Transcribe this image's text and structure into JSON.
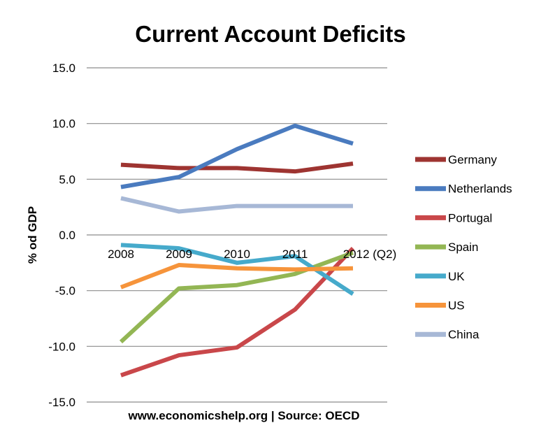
{
  "chart_data": {
    "type": "line",
    "title": "Current Account Deficits",
    "xlabel": "www.economicshelp.org | Source: OECD",
    "ylabel": "% od GDP",
    "categories": [
      "2008",
      "2009",
      "2010",
      "2011",
      "2012 (Q2)"
    ],
    "ylim": [
      -15,
      15
    ],
    "yticks": [
      15,
      10,
      5,
      0,
      -5,
      -10,
      -15
    ],
    "ytick_labels": [
      "15.0",
      "10.0",
      "5.0",
      "0.0",
      "-5.0",
      "-10.0",
      "-15.0"
    ],
    "grid": true,
    "legend": "right",
    "series": [
      {
        "name": "Germany",
        "color": "#9e3431",
        "values": [
          6.3,
          6.0,
          6.0,
          5.7,
          6.4
        ]
      },
      {
        "name": "Netherlands",
        "color": "#4a7bbf",
        "values": [
          4.3,
          5.2,
          7.7,
          9.8,
          8.2
        ]
      },
      {
        "name": "Portugal",
        "color": "#c9474a",
        "values": [
          -12.6,
          -10.8,
          -10.1,
          -6.7,
          -1.2
        ]
      },
      {
        "name": "Spain",
        "color": "#93b654",
        "values": [
          -9.6,
          -4.8,
          -4.5,
          -3.5,
          -1.6
        ]
      },
      {
        "name": "UK",
        "color": "#46aacb",
        "values": [
          -0.9,
          -1.2,
          -2.5,
          -1.9,
          -5.3
        ]
      },
      {
        "name": "US",
        "color": "#f6943b",
        "values": [
          -4.7,
          -2.7,
          -3.0,
          -3.1,
          -3.0
        ]
      },
      {
        "name": "China",
        "color": "#a7b8d6",
        "values": [
          3.3,
          2.1,
          2.6,
          2.6,
          2.6
        ]
      }
    ]
  }
}
